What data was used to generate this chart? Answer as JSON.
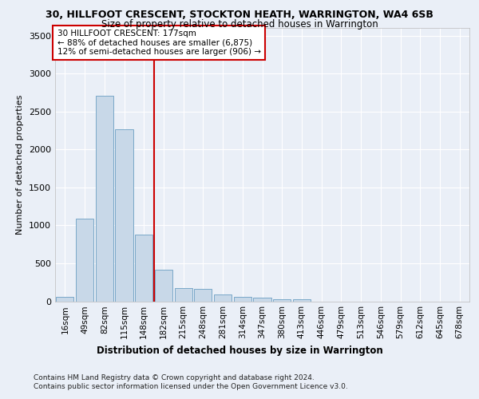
{
  "title1": "30, HILLFOOT CRESCENT, STOCKTON HEATH, WARRINGTON, WA4 6SB",
  "title2": "Size of property relative to detached houses in Warrington",
  "xlabel": "Distribution of detached houses by size in Warrington",
  "ylabel": "Number of detached properties",
  "bin_labels": [
    "16sqm",
    "49sqm",
    "82sqm",
    "115sqm",
    "148sqm",
    "182sqm",
    "215sqm",
    "248sqm",
    "281sqm",
    "314sqm",
    "347sqm",
    "380sqm",
    "413sqm",
    "446sqm",
    "479sqm",
    "513sqm",
    "546sqm",
    "579sqm",
    "612sqm",
    "645sqm",
    "678sqm"
  ],
  "bar_values": [
    55,
    1090,
    2710,
    2270,
    880,
    410,
    170,
    165,
    90,
    60,
    50,
    30,
    25,
    0,
    0,
    0,
    0,
    0,
    0,
    0,
    0
  ],
  "bar_color": "#c8d8e8",
  "bar_edgecolor": "#7aa8c8",
  "ref_line_bin_index": 5,
  "ref_line_label": "30 HILLFOOT CRESCENT: 177sqm",
  "annotation_line1": "← 88% of detached houses are smaller (6,875)",
  "annotation_line2": "12% of semi-detached houses are larger (906) →",
  "annotation_box_facecolor": "#ffffff",
  "annotation_box_edgecolor": "#cc0000",
  "ref_line_color": "#cc0000",
  "ylim": [
    0,
    3600
  ],
  "yticks": [
    0,
    500,
    1000,
    1500,
    2000,
    2500,
    3000,
    3500
  ],
  "footer1": "Contains HM Land Registry data © Crown copyright and database right 2024.",
  "footer2": "Contains public sector information licensed under the Open Government Licence v3.0.",
  "bg_color": "#eaeff7",
  "plot_bg_color": "#eaeff7",
  "title1_fontsize": 9,
  "title2_fontsize": 8.5,
  "ylabel_fontsize": 8,
  "xlabel_fontsize": 8.5,
  "tick_fontsize": 7.5,
  "ytick_fontsize": 8,
  "annotation_fontsize": 7.5,
  "footer_fontsize": 6.5
}
